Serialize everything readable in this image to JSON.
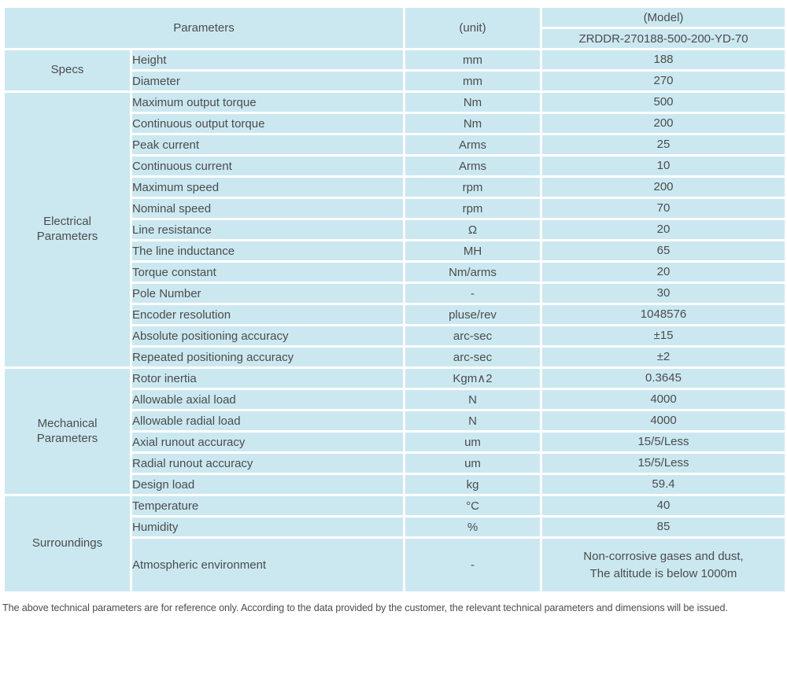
{
  "header": {
    "parameters_label": "Parameters",
    "unit_label": "(unit)",
    "model_label": "(Model)",
    "model_number": "ZRDDR-270188-500-200-YD-70"
  },
  "colors": {
    "header_bg": "#98d5cc",
    "row_bg": "#cbe8f1",
    "border": "#ffffff",
    "text": "#4c4c4c"
  },
  "sections": [
    {
      "label": "Specs",
      "rows": [
        {
          "name": "Height",
          "unit": "mm",
          "value": "188"
        },
        {
          "name": "Diameter",
          "unit": "mm",
          "value": "270"
        }
      ]
    },
    {
      "label": "Electrical\nParameters",
      "rows": [
        {
          "name": "Maximum output torque",
          "unit": "Nm",
          "value": "500"
        },
        {
          "name": "Continuous output torque",
          "unit": "Nm",
          "value": "200"
        },
        {
          "name": "Peak current",
          "unit": "Arms",
          "value": "25"
        },
        {
          "name": "Continuous current",
          "unit": "Arms",
          "value": "10"
        },
        {
          "name": "Maximum speed",
          "unit": "rpm",
          "value": "200"
        },
        {
          "name": "Nominal speed",
          "unit": "rpm",
          "value": "70"
        },
        {
          "name": "Line resistance",
          "unit": "Ω",
          "value": "20"
        },
        {
          "name": "The line inductance",
          "unit": "MH",
          "value": "65"
        },
        {
          "name": "Torque constant",
          "unit": "Nm/arms",
          "value": "20"
        },
        {
          "name": "Pole Number",
          "unit": "-",
          "value": "30"
        },
        {
          "name": "Encoder resolution",
          "unit": "pluse/rev",
          "value": "1048576"
        },
        {
          "name": "Absolute positioning accuracy",
          "unit": "arc-sec",
          "value": "±15"
        },
        {
          "name": "Repeated positioning accuracy",
          "unit": "arc-sec",
          "value": "±2"
        }
      ]
    },
    {
      "label": "Mechanical\nParameters",
      "rows": [
        {
          "name": "Rotor inertia",
          "unit": "Kgm∧2",
          "value": "0.3645"
        },
        {
          "name": "Allowable axial load",
          "unit": "N",
          "value": "4000"
        },
        {
          "name": "Allowable radial load",
          "unit": "N",
          "value": "4000"
        },
        {
          "name": "Axial runout accuracy",
          "unit": "um",
          "value": "15/5/Less"
        },
        {
          "name": "Radial runout accuracy",
          "unit": "um",
          "value": "15/5/Less"
        },
        {
          "name": "Design load",
          "unit": "kg",
          "value": "59.4"
        }
      ]
    },
    {
      "label": "Surroundings",
      "rows": [
        {
          "name": "Temperature",
          "unit": "°C",
          "value": "40"
        },
        {
          "name": "Humidity",
          "unit": "%",
          "value": "85"
        },
        {
          "name": "Atmospheric environment",
          "unit": "-",
          "value": "Non-corrosive gases and dust,\nThe altitude is below 1000m"
        }
      ]
    }
  ],
  "footer": {
    "note": "The above technical parameters are for reference only. According to the data provided by the customer, the relevant technical parameters and dimensions will be issued."
  }
}
